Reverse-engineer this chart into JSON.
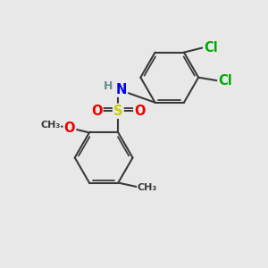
{
  "background_color": "#e8e8e8",
  "bond_color": "#3a3a3a",
  "bond_width": 1.5,
  "atom_colors": {
    "C": "#3a3a3a",
    "H": "#6a8a8a",
    "N": "#0000ee",
    "O": "#ee0000",
    "S": "#cccc00",
    "Cl": "#00aa00"
  },
  "figsize": [
    3.0,
    3.0
  ],
  "dpi": 100
}
